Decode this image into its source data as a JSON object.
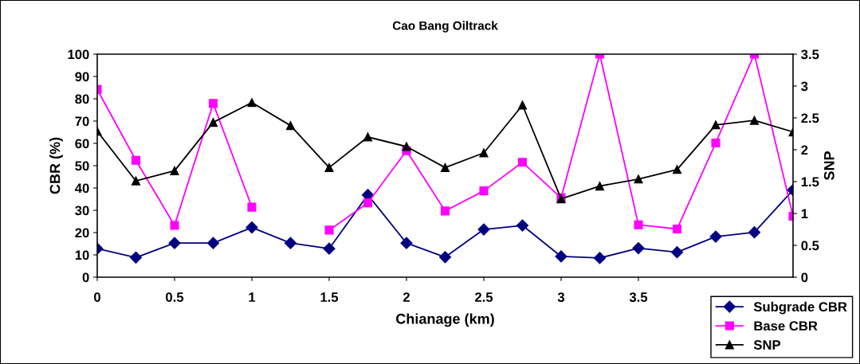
{
  "chart_data": {
    "type": "line",
    "title": "Cao Bang Oiltrack",
    "xlabel": "Chianage (km)",
    "ylabel": "CBR (%)",
    "y2label": "SNP",
    "x": [
      0,
      0.25,
      0.5,
      0.75,
      1,
      1.25,
      1.5,
      1.75,
      2,
      2.25,
      2.5,
      2.75,
      3,
      3.25,
      3.5,
      3.75,
      4,
      4.25,
      4.5
    ],
    "series": [
      {
        "name": "Subgrade CBR",
        "color": "#000080",
        "marker": "diamond",
        "values": [
          12.8,
          8.8,
          15.3,
          15.3,
          22.3,
          15.3,
          12.8,
          36.9,
          15.3,
          9,
          21.4,
          23.2,
          9.3,
          8.6,
          13,
          11.2,
          18.2,
          20.1,
          39.1
        ]
      },
      {
        "name": "Base CBR",
        "color": "#ff00ff",
        "marker": "square",
        "values": [
          84.2,
          52.4,
          23.2,
          77.9,
          31.4,
          null,
          21.1,
          33.3,
          56.7,
          29.7,
          38.7,
          51.5,
          35.6,
          100,
          23.5,
          21.6,
          60.2,
          100,
          27.3
        ]
      },
      {
        "name": "SNP",
        "color": "#000000",
        "marker": "triangle",
        "axis": "y2",
        "values": [
          2.29,
          1.51,
          1.67,
          2.43,
          2.74,
          2.38,
          1.72,
          2.2,
          2.05,
          1.72,
          1.95,
          2.7,
          1.23,
          1.43,
          1.54,
          1.69,
          2.39,
          2.46,
          2.28
        ]
      }
    ],
    "xlim": [
      0,
      4.5
    ],
    "xticks": [
      0,
      0.5,
      1,
      1.5,
      2,
      2.5,
      3,
      3.5
    ],
    "ylim": [
      0,
      100
    ],
    "yticks": [
      0,
      10,
      20,
      30,
      40,
      50,
      60,
      70,
      80,
      90,
      100
    ],
    "y2lim": [
      0,
      3.5
    ],
    "y2ticks": [
      0,
      0.5,
      1,
      1.5,
      2,
      2.5,
      3,
      3.5
    ],
    "grid": false,
    "legend": "bottom right",
    "line_style": "solid"
  }
}
